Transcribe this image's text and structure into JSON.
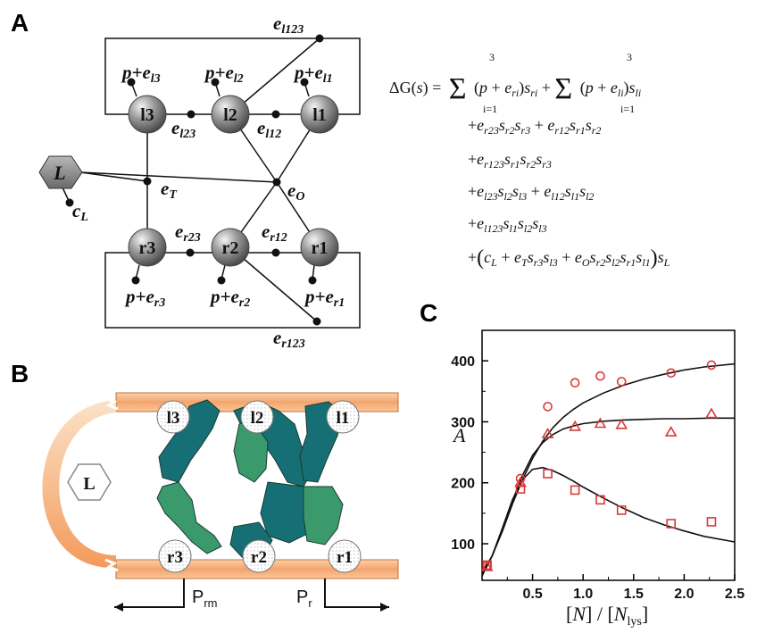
{
  "panels": {
    "a": "A",
    "b": "B",
    "c": "C"
  },
  "panel_a": {
    "nodes": {
      "l1": "l1",
      "l2": "l2",
      "l3": "l3",
      "r1": "r1",
      "r2": "r2",
      "r3": "r3",
      "L": "L"
    },
    "params": {
      "e_l123": "e_l123",
      "p_el3": "p+e_l3",
      "p_el2": "p+e_l2",
      "p_el1": "p+e_l1",
      "e_l23": "e_l23",
      "e_l12": "e_l12",
      "e_T": "e_T",
      "e_O": "e_O",
      "c_L": "c_L",
      "e_r23": "e_r23",
      "e_r12": "e_r12",
      "p_er3": "p+e_r3",
      "p_er2": "p+e_r2",
      "p_er1": "p+e_r1",
      "e_r123": "e_r123"
    },
    "equation": [
      "ΔG(s) = Σ_{i=1}^{3} (p+e_ri) s_ri + Σ_{i=1}^{3} (p+e_li) s_li",
      "+e_r23 s_r2 s_r3 + e_r12 s_r1 s_r2",
      "+e_r123 s_r1 s_r2 s_r3",
      "+e_l23 s_l2 s_l3 + e_l12 s_l1 s_l2",
      "+e_l123 s_l1 s_l2 s_l3",
      "+(c_L + e_T s_r3 s_l3 + e_O s_r2 s_l2 s_r1 s_l1) s_L"
    ]
  },
  "panel_b": {
    "nodes": {
      "l1": "l1",
      "l2": "l2",
      "l3": "l3",
      "r1": "r1",
      "r2": "r2",
      "r3": "r3",
      "L": "L"
    },
    "promoters": {
      "prm": "P_rm",
      "pr": "P_r"
    },
    "colors": {
      "dna": "#f4a46e",
      "teal": "#166f74",
      "green": "#3a9a6c",
      "arc": "#f6ae72"
    }
  },
  "chart_data": {
    "type": "scatter",
    "title": "",
    "xlabel": "[N] / [N_lys]",
    "ylabel": "A",
    "xlim": [
      0,
      2.5
    ],
    "ylim": [
      40,
      450
    ],
    "xticks": [
      "0.5",
      "1.0",
      "1.5",
      "2.0",
      "2.5"
    ],
    "yticks": [
      "100",
      "200",
      "300",
      "400"
    ],
    "grid": false,
    "series": [
      {
        "marker": "circle",
        "points": [
          [
            0.05,
            64
          ],
          [
            0.38,
            207
          ],
          [
            0.65,
            325
          ],
          [
            0.92,
            364
          ],
          [
            1.17,
            375
          ],
          [
            1.38,
            366
          ],
          [
            1.87,
            380
          ],
          [
            2.27,
            393
          ]
        ],
        "curve": [
          [
            0.0,
            52
          ],
          [
            0.1,
            80
          ],
          [
            0.2,
            120
          ],
          [
            0.3,
            165
          ],
          [
            0.4,
            205
          ],
          [
            0.5,
            240
          ],
          [
            0.6,
            268
          ],
          [
            0.7,
            290
          ],
          [
            0.8,
            307
          ],
          [
            0.9,
            320
          ],
          [
            1.0,
            331
          ],
          [
            1.2,
            347
          ],
          [
            1.4,
            360
          ],
          [
            1.6,
            370
          ],
          [
            1.8,
            378
          ],
          [
            2.0,
            385
          ],
          [
            2.2,
            390
          ],
          [
            2.5,
            395
          ]
        ]
      },
      {
        "marker": "triangle",
        "points": [
          [
            0.05,
            62
          ],
          [
            0.38,
            200
          ],
          [
            0.65,
            280
          ],
          [
            0.92,
            292
          ],
          [
            1.17,
            297
          ],
          [
            1.38,
            295
          ],
          [
            1.87,
            283
          ],
          [
            2.27,
            313
          ]
        ],
        "curve": [
          [
            0.0,
            50
          ],
          [
            0.1,
            80
          ],
          [
            0.2,
            122
          ],
          [
            0.3,
            170
          ],
          [
            0.4,
            212
          ],
          [
            0.5,
            245
          ],
          [
            0.6,
            266
          ],
          [
            0.7,
            279
          ],
          [
            0.8,
            288
          ],
          [
            0.9,
            293
          ],
          [
            1.0,
            297
          ],
          [
            1.2,
            301
          ],
          [
            1.4,
            303
          ],
          [
            1.6,
            304
          ],
          [
            1.8,
            305
          ],
          [
            2.0,
            305
          ],
          [
            2.25,
            306
          ],
          [
            2.5,
            306
          ]
        ]
      },
      {
        "marker": "square",
        "points": [
          [
            0.05,
            65
          ],
          [
            0.38,
            190
          ],
          [
            0.65,
            215
          ],
          [
            0.92,
            188
          ],
          [
            1.17,
            172
          ],
          [
            1.38,
            155
          ],
          [
            1.87,
            133
          ],
          [
            2.27,
            136
          ]
        ],
        "curve": [
          [
            0.0,
            47
          ],
          [
            0.1,
            80
          ],
          [
            0.2,
            125
          ],
          [
            0.3,
            172
          ],
          [
            0.4,
            205
          ],
          [
            0.5,
            222
          ],
          [
            0.6,
            225
          ],
          [
            0.7,
            220
          ],
          [
            0.8,
            212
          ],
          [
            0.9,
            203
          ],
          [
            1.0,
            193
          ],
          [
            1.2,
            175
          ],
          [
            1.4,
            158
          ],
          [
            1.6,
            143
          ],
          [
            1.8,
            131
          ],
          [
            2.0,
            121
          ],
          [
            2.2,
            112
          ],
          [
            2.5,
            103
          ]
        ]
      }
    ],
    "colors": {
      "marker": "#d83a3a",
      "curve": "#111111"
    }
  }
}
